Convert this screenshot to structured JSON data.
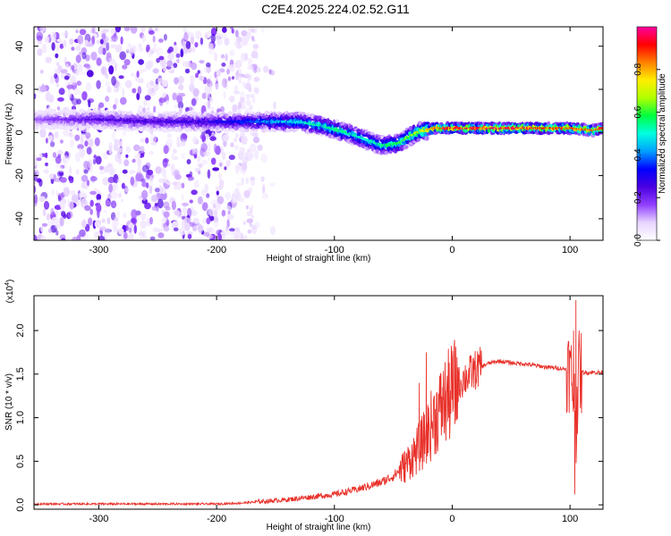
{
  "title": "C2E4.2025.224.02.52.G11",
  "chart_data": [
    {
      "type": "heatmap",
      "xlabel": "Height of straight line (km)",
      "ylabel": "Frequency (Hz)",
      "xlim": [
        -355,
        128
      ],
      "ylim": [
        -50,
        49
      ],
      "xticks": [
        -300,
        -200,
        -100,
        0,
        100
      ],
      "yticks": [
        -40,
        -20,
        0,
        20,
        40
      ],
      "colorbar": {
        "label": "Normalized spectral amplitude",
        "range": [
          0,
          1
        ],
        "ticks": [
          "0.0",
          "0.2",
          "0.4",
          "0.6",
          "0.8"
        ],
        "colors": [
          "#ffffff",
          "#e8d4ff",
          "#9040ff",
          "#4b00e0",
          "#0000ff",
          "#00a0ff",
          "#00ffe0",
          "#00ff40",
          "#b0ff00",
          "#ffee00",
          "#ff8000",
          "#ff0000",
          "#ff00a0"
        ]
      },
      "ridge": {
        "description": "dominant frequency track",
        "x": [
          -355,
          -300,
          -250,
          -200,
          -175,
          -150,
          -130,
          -110,
          -90,
          -75,
          -60,
          -45,
          -30,
          -15,
          0,
          50,
          100,
          120,
          128
        ],
        "y": [
          6,
          6,
          5,
          5,
          5,
          5,
          5,
          3,
          0,
          -3,
          -6,
          -5,
          0,
          2,
          2,
          2,
          2,
          1,
          2
        ],
        "peak_amplitude": [
          0.15,
          0.25,
          0.25,
          0.3,
          0.35,
          0.45,
          0.5,
          0.55,
          0.55,
          0.5,
          0.55,
          0.6,
          0.7,
          0.85,
          0.95,
          0.95,
          0.9,
          0.85,
          0.9
        ]
      },
      "noise_region_x": [
        -355,
        -165
      ]
    },
    {
      "type": "line",
      "xlabel": "Height of straight line (km)",
      "ylabel": "SNR (10 * v/v)",
      "yscale_label": "(x10^4)",
      "xlim": [
        -355,
        128
      ],
      "ylim": [
        -0.05,
        2.4
      ],
      "xticks": [
        -300,
        -200,
        -100,
        0,
        100
      ],
      "yticks": [
        "0.0",
        "0.5",
        "1.0",
        "1.5",
        "2.0"
      ],
      "color": "#e8312a",
      "series": [
        {
          "x": [
            -355,
            -300,
            -250,
            -200,
            -180,
            -160,
            -140,
            -120,
            -100,
            -80,
            -60,
            -50,
            -40,
            -30,
            -25,
            -20,
            -15,
            -10,
            -5,
            0,
            10,
            20,
            30,
            40,
            50,
            60,
            70,
            80,
            90,
            100,
            103,
            105,
            107,
            110,
            120,
            128
          ],
          "y": [
            0.01,
            0.01,
            0.01,
            0.01,
            0.02,
            0.04,
            0.06,
            0.09,
            0.12,
            0.18,
            0.26,
            0.33,
            0.45,
            0.62,
            0.72,
            0.85,
            1.0,
            1.1,
            1.2,
            1.3,
            1.45,
            1.55,
            1.62,
            1.65,
            1.63,
            1.62,
            1.6,
            1.58,
            1.57,
            1.55,
            1.3,
            0.9,
            1.5,
            1.52,
            1.52,
            1.52
          ]
        }
      ],
      "spikes": [
        {
          "x": -28,
          "y": 1.4
        },
        {
          "x": -22,
          "y": 1.75
        },
        {
          "x": -8,
          "y": 1.35
        },
        {
          "x": 100,
          "y": 1.7
        },
        {
          "x": 103,
          "y": 2.0
        },
        {
          "x": 105,
          "y": 2.35
        },
        {
          "x": 104,
          "y": 0.12
        }
      ]
    }
  ]
}
